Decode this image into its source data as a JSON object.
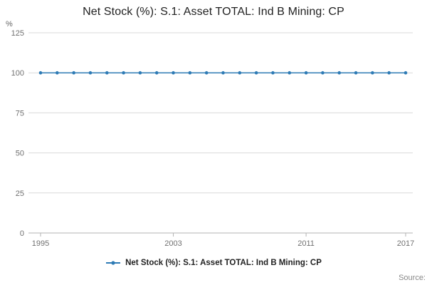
{
  "title": "Net Stock (%): S.1: Asset TOTAL: Ind B Mining: CP",
  "unit_label": "%",
  "source_label": "Source:",
  "legend": {
    "label": "Net Stock (%): S.1: Asset TOTAL: Ind B Mining: CP"
  },
  "colors": {
    "line": "#2e7bb5",
    "grid": "#d9d9d9",
    "axis": "#b3b3b3",
    "tick_text": "#707070"
  },
  "chart_data": {
    "type": "line",
    "title": "Net Stock (%): S.1: Asset TOTAL: Ind B Mining: CP",
    "xlabel": "",
    "ylabel": "%",
    "x": [
      1995,
      1996,
      1997,
      1998,
      1999,
      2000,
      2001,
      2002,
      2003,
      2004,
      2005,
      2006,
      2007,
      2008,
      2009,
      2010,
      2011,
      2012,
      2013,
      2014,
      2015,
      2016,
      2017
    ],
    "series": [
      {
        "name": "Net Stock (%): S.1: Asset TOTAL: Ind B Mining: CP",
        "values": [
          100,
          100,
          100,
          100,
          100,
          100,
          100,
          100,
          100,
          100,
          100,
          100,
          100,
          100,
          100,
          100,
          100,
          100,
          100,
          100,
          100,
          100,
          100
        ]
      }
    ],
    "ylim": [
      0,
      125
    ],
    "yticks": [
      0,
      25,
      50,
      75,
      100,
      125
    ],
    "xticks": [
      1995,
      2003,
      2011,
      2017
    ],
    "grid": true,
    "legend_position": "bottom"
  }
}
